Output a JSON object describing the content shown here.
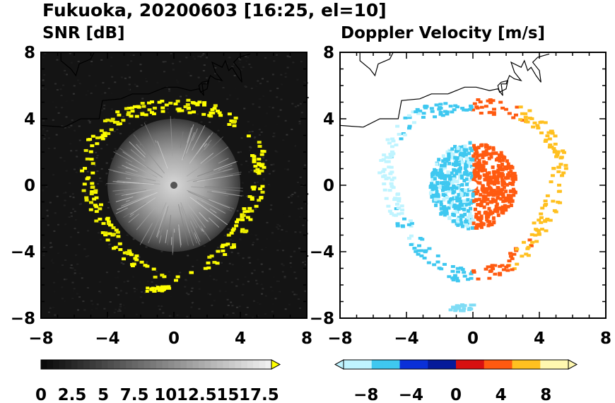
{
  "title": "Fukuoka, 20200603 [16:25, el=10]",
  "chart_data": [
    {
      "type": "heatmap",
      "title": "SNR [dB]",
      "xlim": [
        -8,
        8
      ],
      "ylim": [
        -8,
        8
      ],
      "x_ticks": [
        "−8",
        "−4",
        "0",
        "4",
        "8"
      ],
      "y_ticks": [
        "8",
        "4",
        "0",
        "−4",
        "−8"
      ],
      "colorbar": {
        "min": 0,
        "max": 18.5,
        "ticks": [
          {
            "value": 0,
            "label": "0"
          },
          {
            "value": 2.5,
            "label": "2.5"
          },
          {
            "value": 5,
            "label": "5"
          },
          {
            "value": 7.5,
            "label": "7.5"
          },
          {
            "value": 10,
            "label": "10"
          },
          {
            "value": 12.5,
            "label": "12.5"
          },
          {
            "value": 15,
            "label": "15"
          },
          {
            "value": 17.5,
            "label": "17.5"
          }
        ],
        "colors": [
          "#000000",
          "#ffffff",
          "#ffff00"
        ]
      },
      "background_color": "#141414",
      "echo_ring_radius": 5.1,
      "clutter_radius": 4.0
    },
    {
      "type": "heatmap",
      "title": "Doppler Velocity [m/s]",
      "xlim": [
        -8,
        8
      ],
      "ylim": [
        -8,
        8
      ],
      "x_ticks": [
        "−8",
        "−4",
        "0",
        "4",
        "8"
      ],
      "y_ticks": [
        "8",
        "4",
        "0",
        "−4",
        "−8"
      ],
      "colorbar": {
        "min": -10,
        "max": 10,
        "ticks": [
          {
            "value": -8,
            "label": "−8"
          },
          {
            "value": -4,
            "label": "−4"
          },
          {
            "value": 0,
            "label": "0"
          },
          {
            "value": 4,
            "label": "4"
          },
          {
            "value": 8,
            "label": "8"
          }
        ],
        "colors": [
          "#bff4ff",
          "#3fc8f0",
          "#0a30d8",
          "#061a9a",
          "#d81010",
          "#ff5a10",
          "#ffc020",
          "#fff8b0"
        ]
      },
      "echo_ring_radius": 5.1
    }
  ]
}
